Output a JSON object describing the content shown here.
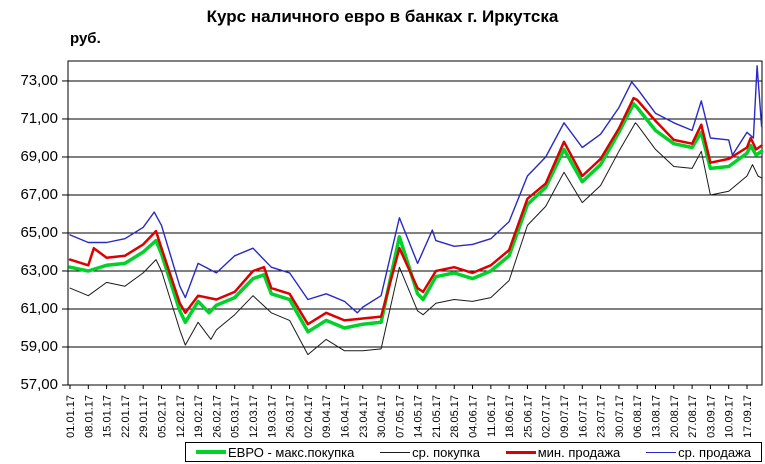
{
  "page": {
    "background": "#ffffff"
  },
  "chart": {
    "title": "Курс наличного евро в банках г. Иркутска",
    "y_axis_unit": "руб.",
    "y_tick_labels": [
      "73,00",
      "71,00",
      "69,00",
      "67,00",
      "65,00",
      "63,00",
      "61,00",
      "59,00",
      "57,00"
    ]
  },
  "chart_data": {
    "type": "line",
    "title": "Курс наличного евро в банках г. Иркутска",
    "ylabel": "руб.",
    "ylim": [
      57,
      74.05
    ],
    "y_tick_step": 2,
    "grid": "horizontal",
    "legend_position": "bottom",
    "x_note": "weekly date ticks, daily data 01.01.17 - 20.09.17",
    "categories": [
      "01.01.17",
      "08.01.17",
      "15.01.17",
      "22.01.17",
      "29.01.17",
      "05.02.17",
      "12.02.17",
      "19.02.17",
      "26.02.17",
      "05.03.17",
      "12.03.17",
      "19.03.17",
      "26.03.17",
      "02.04.17",
      "09.04.17",
      "16.04.17",
      "23.04.17",
      "30.04.17",
      "07.05.17",
      "14.05.17",
      "21.05.17",
      "28.05.17",
      "04.06.17",
      "11.06.17",
      "18.06.17",
      "25.06.17",
      "02.07.17",
      "09.07.17",
      "16.07.17",
      "23.07.17",
      "30.07.17",
      "06.08.17",
      "13.08.17",
      "20.08.17",
      "27.08.17",
      "03.09.17",
      "10.09.17",
      "17.09.17"
    ],
    "series": [
      {
        "key": "max-buy",
        "name": "ЕВРО - макс.покупка",
        "color": "#00d22a",
        "width": 3.5,
        "values": [
          63.2,
          63.0,
          63.3,
          63.4,
          64.0,
          63.9,
          60.9,
          61.4,
          61.2,
          61.6,
          62.6,
          61.8,
          61.5,
          59.8,
          60.4,
          60.0,
          60.2,
          60.3,
          64.8,
          61.8,
          62.7,
          62.9,
          62.6,
          63.0,
          63.8,
          66.5,
          67.4,
          69.4,
          67.7,
          68.6,
          70.3,
          71.6,
          70.4,
          69.7,
          69.5,
          68.4,
          68.5,
          69.2
        ],
        "extra_points": [
          [
            4.7,
            64.6
          ],
          [
            6.3,
            60.3
          ],
          [
            7.6,
            60.8
          ],
          [
            10.6,
            62.8
          ],
          [
            19.3,
            61.5
          ],
          [
            30.8,
            71.8
          ],
          [
            34.5,
            70.3
          ],
          [
            37.2,
            69.6
          ],
          [
            37.5,
            69.1
          ],
          [
            37.8,
            69.3
          ]
        ]
      },
      {
        "key": "avg-buy",
        "name": "ср. покупка",
        "color": "#1a1a1a",
        "width": 1,
        "values": [
          62.1,
          61.7,
          62.4,
          62.2,
          62.9,
          63.0,
          59.9,
          60.3,
          59.9,
          60.7,
          61.7,
          60.8,
          60.4,
          58.6,
          59.4,
          58.8,
          58.8,
          58.9,
          63.2,
          60.9,
          61.3,
          61.5,
          61.4,
          61.6,
          62.5,
          65.4,
          66.4,
          68.2,
          66.6,
          67.5,
          69.3,
          70.7,
          69.4,
          68.5,
          68.4,
          67.0,
          67.2,
          68.0
        ],
        "extra_points": [
          [
            4.7,
            63.6
          ],
          [
            6.3,
            59.1
          ],
          [
            7.7,
            59.4
          ],
          [
            19.3,
            60.7
          ],
          [
            30.9,
            70.8
          ],
          [
            34.5,
            69.3
          ],
          [
            37.3,
            68.6
          ],
          [
            37.6,
            68.0
          ],
          [
            37.8,
            67.9
          ]
        ]
      },
      {
        "key": "min-sell",
        "name": "мин. продажа",
        "color": "#dd0000",
        "width": 2.5,
        "values": [
          63.6,
          63.3,
          63.7,
          63.8,
          64.4,
          64.2,
          61.3,
          61.7,
          61.5,
          61.9,
          63.0,
          62.1,
          61.8,
          60.2,
          60.8,
          60.4,
          60.5,
          60.6,
          64.2,
          62.1,
          63.0,
          63.2,
          62.9,
          63.3,
          64.1,
          66.8,
          67.6,
          69.8,
          68.0,
          68.9,
          70.5,
          72.0,
          70.9,
          69.9,
          69.7,
          68.7,
          68.9,
          69.5
        ],
        "extra_points": [
          [
            1.3,
            64.2
          ],
          [
            4.7,
            65.1
          ],
          [
            6.3,
            60.8
          ],
          [
            10.6,
            63.2
          ],
          [
            19.3,
            61.9
          ],
          [
            30.8,
            72.1
          ],
          [
            34.5,
            70.7
          ],
          [
            37.2,
            70.0
          ],
          [
            37.5,
            69.4
          ],
          [
            37.8,
            69.6
          ]
        ]
      },
      {
        "key": "avg-sell",
        "name": "ср. продажа",
        "color": "#2929c8",
        "width": 1.4,
        "values": [
          64.9,
          64.5,
          64.5,
          64.7,
          65.3,
          65.4,
          62.2,
          63.4,
          62.9,
          63.8,
          64.2,
          63.2,
          62.9,
          61.5,
          61.8,
          61.4,
          61.1,
          61.7,
          65.8,
          63.4,
          64.6,
          64.3,
          64.4,
          64.7,
          65.6,
          68.0,
          69.0,
          70.8,
          69.5,
          70.2,
          71.6,
          72.6,
          71.3,
          70.8,
          70.4,
          70.0,
          69.9,
          70.3
        ],
        "extra_points": [
          [
            4.6,
            66.1
          ],
          [
            6.3,
            61.6
          ],
          [
            15.7,
            60.8
          ],
          [
            19.8,
            65.15
          ],
          [
            30.7,
            72.95
          ],
          [
            34.5,
            71.95
          ],
          [
            36.2,
            69.1
          ],
          [
            37.35,
            70.0
          ],
          [
            37.55,
            73.8
          ],
          [
            37.8,
            70.6
          ]
        ]
      }
    ],
    "draw_order": [
      3,
      1,
      0,
      2
    ]
  }
}
